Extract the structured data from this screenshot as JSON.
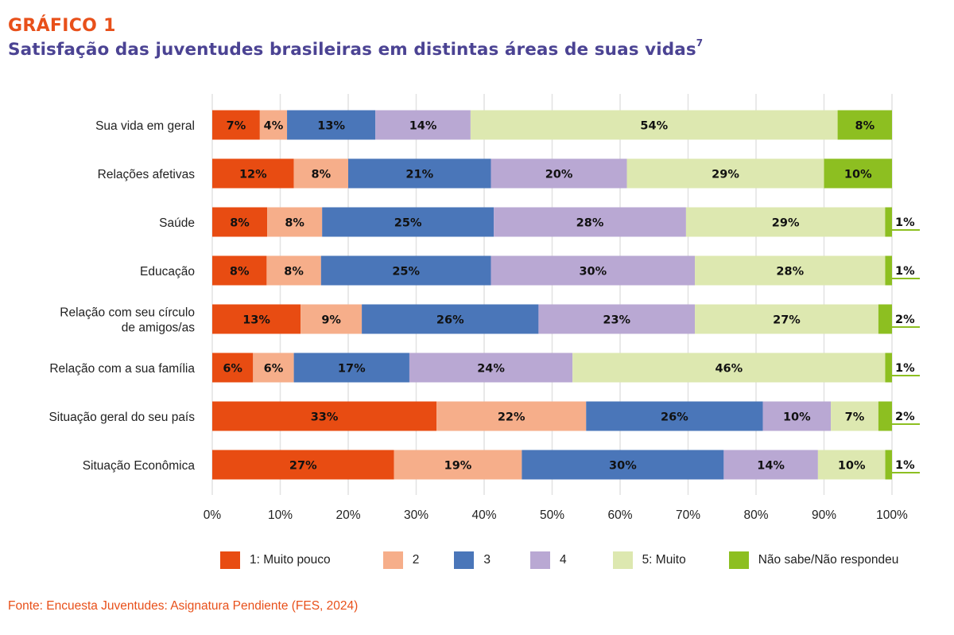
{
  "header": {
    "kicker": "GRÁFICO 1",
    "title": "Satisfação das juventudes brasileiras em distintas áreas de suas vidas",
    "title_footnote": "7"
  },
  "source": "Fonte: Encuesta Juventudes: Asignatura Pendiente (FES, 2024)",
  "chart_data": {
    "type": "bar",
    "orientation": "horizontal",
    "stacked": true,
    "title": "Satisfação das juventudes brasileiras em distintas áreas de suas vidas",
    "xlabel": "",
    "ylabel": "",
    "xlim": [
      0,
      100
    ],
    "x_ticks": [
      "0%",
      "10%",
      "20%",
      "30%",
      "40%",
      "50%",
      "60%",
      "70%",
      "80%",
      "90%",
      "100%"
    ],
    "grid": "vertical",
    "legend_position": "bottom",
    "categories": [
      [
        "Sua vida em geral"
      ],
      [
        "Relações afetivas"
      ],
      [
        "Saúde"
      ],
      [
        "Educação"
      ],
      [
        "Relação com seu círculo",
        "de amigos/as"
      ],
      [
        "Relação com a sua família"
      ],
      [
        "Situação geral do seu país"
      ],
      [
        "Situação Econômica"
      ]
    ],
    "series": [
      {
        "name": "1: Muito pouco",
        "color": "#e84c12",
        "values": [
          7,
          12,
          8,
          8,
          13,
          6,
          33,
          27
        ]
      },
      {
        "name": "2",
        "color": "#f6ae8a",
        "values": [
          4,
          8,
          8,
          8,
          9,
          6,
          22,
          19
        ]
      },
      {
        "name": "3",
        "color": "#4a76b9",
        "values": [
          13,
          21,
          25,
          25,
          26,
          17,
          26,
          30
        ]
      },
      {
        "name": "4",
        "color": "#b9a8d3",
        "values": [
          14,
          20,
          28,
          30,
          23,
          24,
          10,
          14
        ]
      },
      {
        "name": "5: Muito",
        "color": "#dde8b0",
        "values": [
          54,
          29,
          29,
          28,
          27,
          46,
          7,
          10
        ]
      },
      {
        "name": "Não sabe/Não respondeu",
        "color": "#8dbf21",
        "values": [
          8,
          10,
          1,
          1,
          2,
          1,
          2,
          1
        ]
      }
    ]
  }
}
